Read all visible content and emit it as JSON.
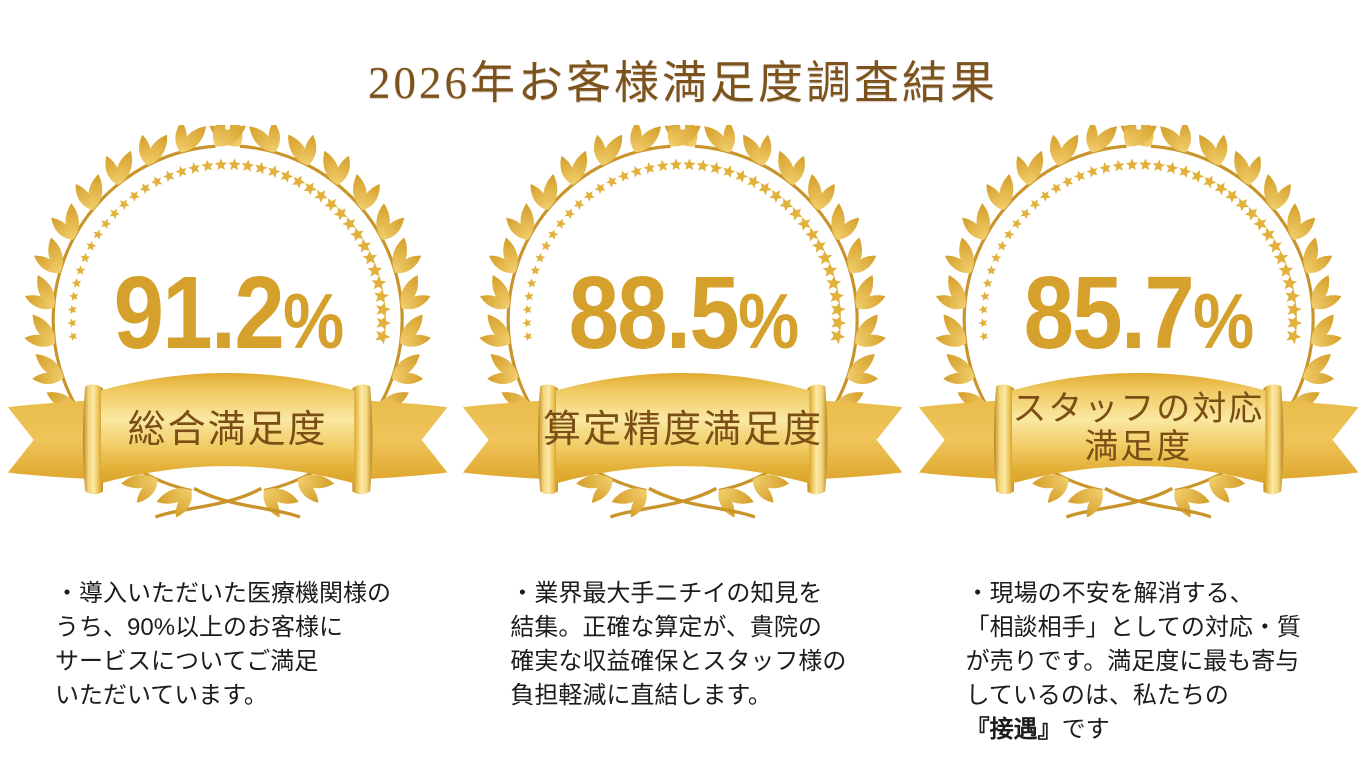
{
  "page": {
    "title": "2026年お客様満足度調査結果"
  },
  "colors": {
    "background": "#ffffff",
    "title_text": "#7d531d",
    "score_text": "#d5a02c",
    "ribbon_text": "#7a4e14",
    "body_text": "#1c1c1c",
    "gold_accent": "#e0ab31"
  },
  "badges": [
    {
      "score": "91.2",
      "unit": "%",
      "label": "総合満足度",
      "description": "・導入いただいた医療機関様の\nうち、90%以上のお客様に\nサービスについてご満足\nいただいています。"
    },
    {
      "score": "88.5",
      "unit": "%",
      "label": "算定精度満足度",
      "description": "・業界最大手ニチイの知見を\n結集。正確な算定が、貴院の\n確実な収益確保とスタッフ様の\n負担軽減に直結します。"
    },
    {
      "score": "85.7",
      "unit": "%",
      "label": "スタッフの対応\n満足度",
      "description": "・現場の不安を解消する、\n「相談相手」としての対応・質\nが売りです。満足度に最も寄与\nしているのは、私たちの\n",
      "description_emphasis": "『接遇』",
      "description_suffix": "です"
    }
  ]
}
